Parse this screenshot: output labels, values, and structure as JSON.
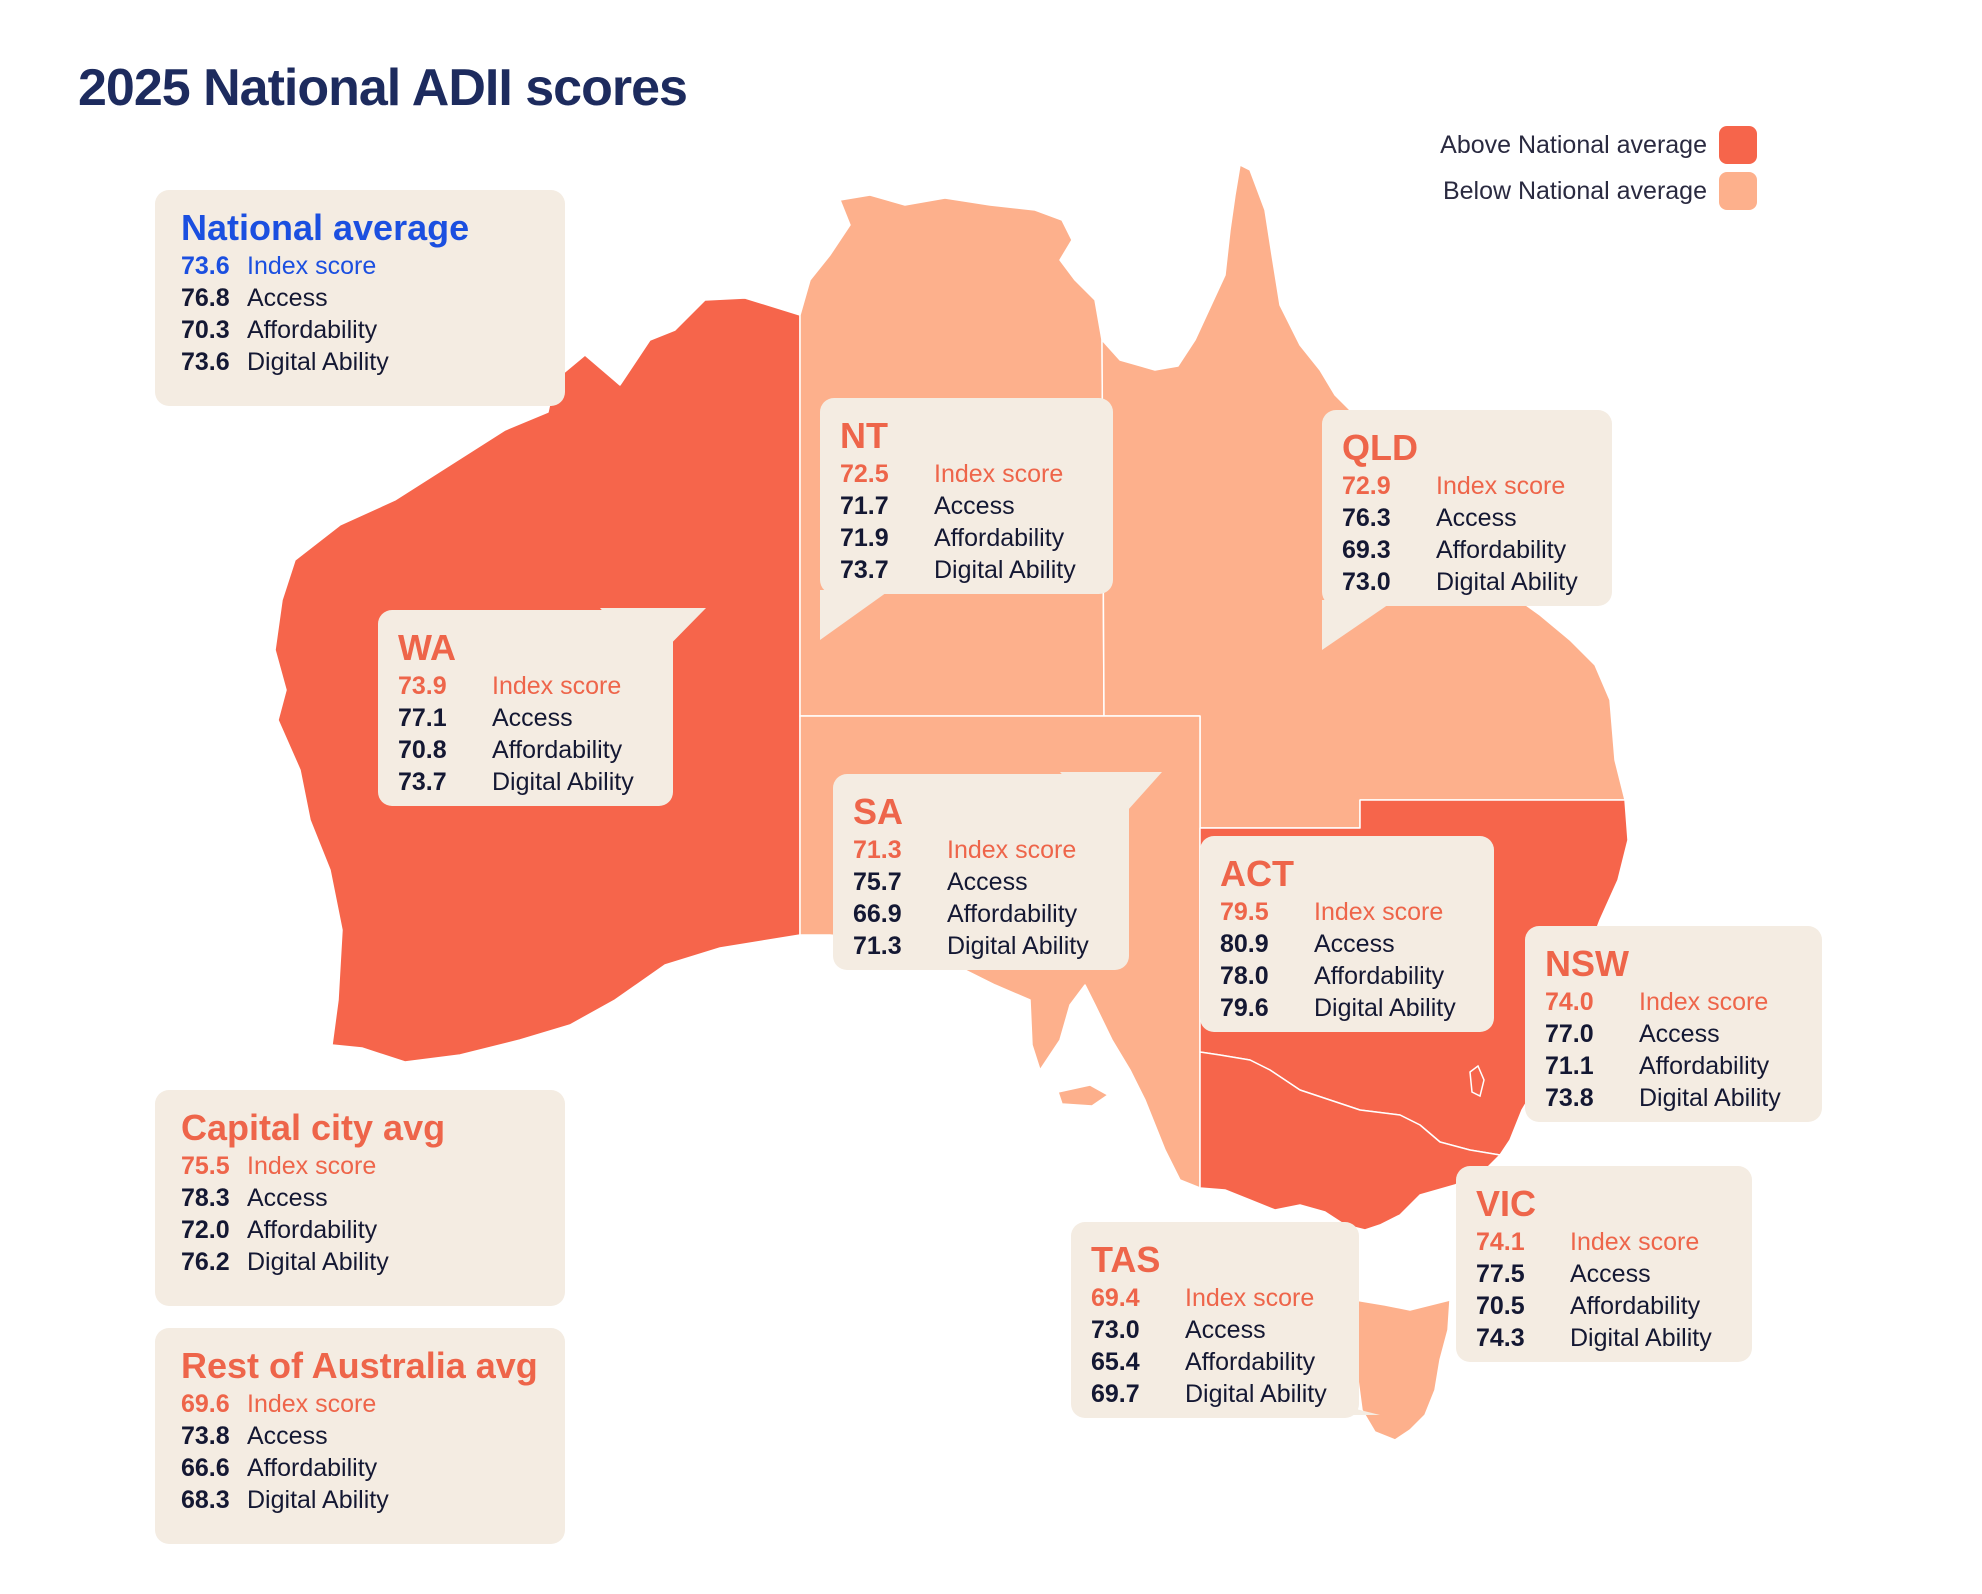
{
  "title": "2025 National ADII scores",
  "legend": {
    "above_label": "Above National average",
    "below_label": "Below National average",
    "above_color": "#f6654b",
    "below_color": "#fdb08c"
  },
  "metric_labels": {
    "index": "Index score",
    "access": "Access",
    "affordability": "Affordability",
    "digital_ability": "Digital Ability"
  },
  "summaries": {
    "national": {
      "title": "National average",
      "index": "73.6",
      "access": "76.8",
      "affordability": "70.3",
      "digital_ability": "73.6"
    },
    "capital": {
      "title": "Capital city avg",
      "index": "75.5",
      "access": "78.3",
      "affordability": "72.0",
      "digital_ability": "76.2"
    },
    "rest": {
      "title": "Rest of Australia avg",
      "index": "69.6",
      "access": "73.8",
      "affordability": "66.6",
      "digital_ability": "68.3"
    }
  },
  "states": {
    "wa": {
      "title": "WA",
      "index": "73.9",
      "access": "77.1",
      "affordability": "70.8",
      "digital_ability": "73.7",
      "status": "above"
    },
    "nt": {
      "title": "NT",
      "index": "72.5",
      "access": "71.7",
      "affordability": "71.9",
      "digital_ability": "73.7",
      "status": "below"
    },
    "qld": {
      "title": "QLD",
      "index": "72.9",
      "access": "76.3",
      "affordability": "69.3",
      "digital_ability": "73.0",
      "status": "below"
    },
    "sa": {
      "title": "SA",
      "index": "71.3",
      "access": "75.7",
      "affordability": "66.9",
      "digital_ability": "71.3",
      "status": "below"
    },
    "act": {
      "title": "ACT",
      "index": "79.5",
      "access": "80.9",
      "affordability": "78.0",
      "digital_ability": "79.6",
      "status": "above"
    },
    "nsw": {
      "title": "NSW",
      "index": "74.0",
      "access": "77.0",
      "affordability": "71.1",
      "digital_ability": "73.8",
      "status": "above"
    },
    "vic": {
      "title": "VIC",
      "index": "74.1",
      "access": "77.5",
      "affordability": "70.5",
      "digital_ability": "74.3",
      "status": "above"
    },
    "tas": {
      "title": "TAS",
      "index": "69.4",
      "access": "73.0",
      "affordability": "65.4",
      "digital_ability": "69.7",
      "status": "below"
    }
  }
}
